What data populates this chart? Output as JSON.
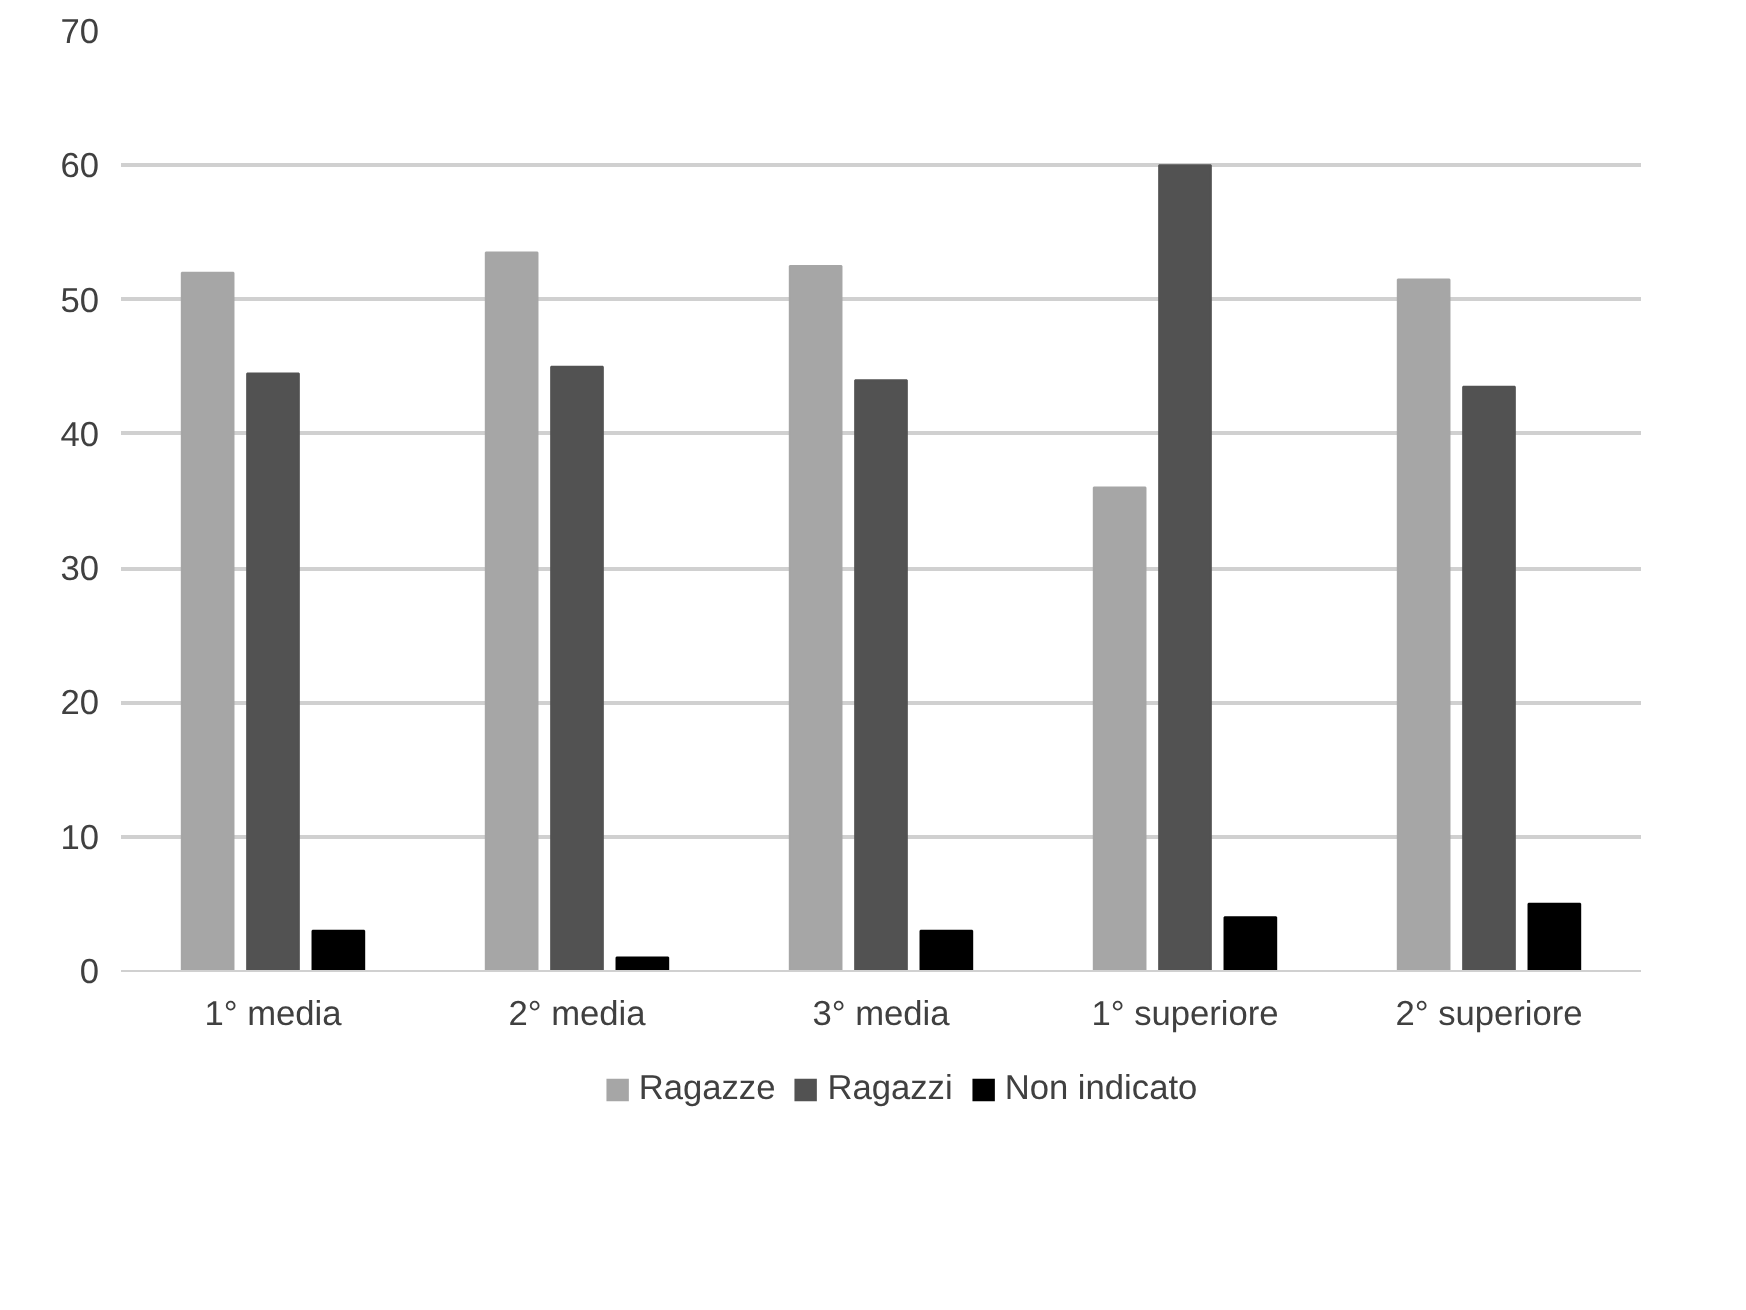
{
  "chart_data": {
    "type": "bar",
    "categories": [
      "1° media",
      "2° media",
      "3° media",
      "1° superiore",
      "2° superiore"
    ],
    "series": [
      {
        "name": "Ragazze",
        "color": "#a6a6a6",
        "values": [
          52,
          53.5,
          52.5,
          36,
          51.5
        ]
      },
      {
        "name": "Ragazzi",
        "color": "#525252",
        "values": [
          44.5,
          45,
          44,
          60,
          43.5
        ]
      },
      {
        "name": "Non indicato",
        "color": "#000000",
        "values": [
          3,
          1,
          3,
          4,
          5
        ]
      }
    ],
    "ylim": [
      0,
      70
    ],
    "yticks": [
      0,
      10,
      20,
      30,
      40,
      50,
      60,
      70
    ],
    "grid": "y",
    "legend": "bottom"
  }
}
